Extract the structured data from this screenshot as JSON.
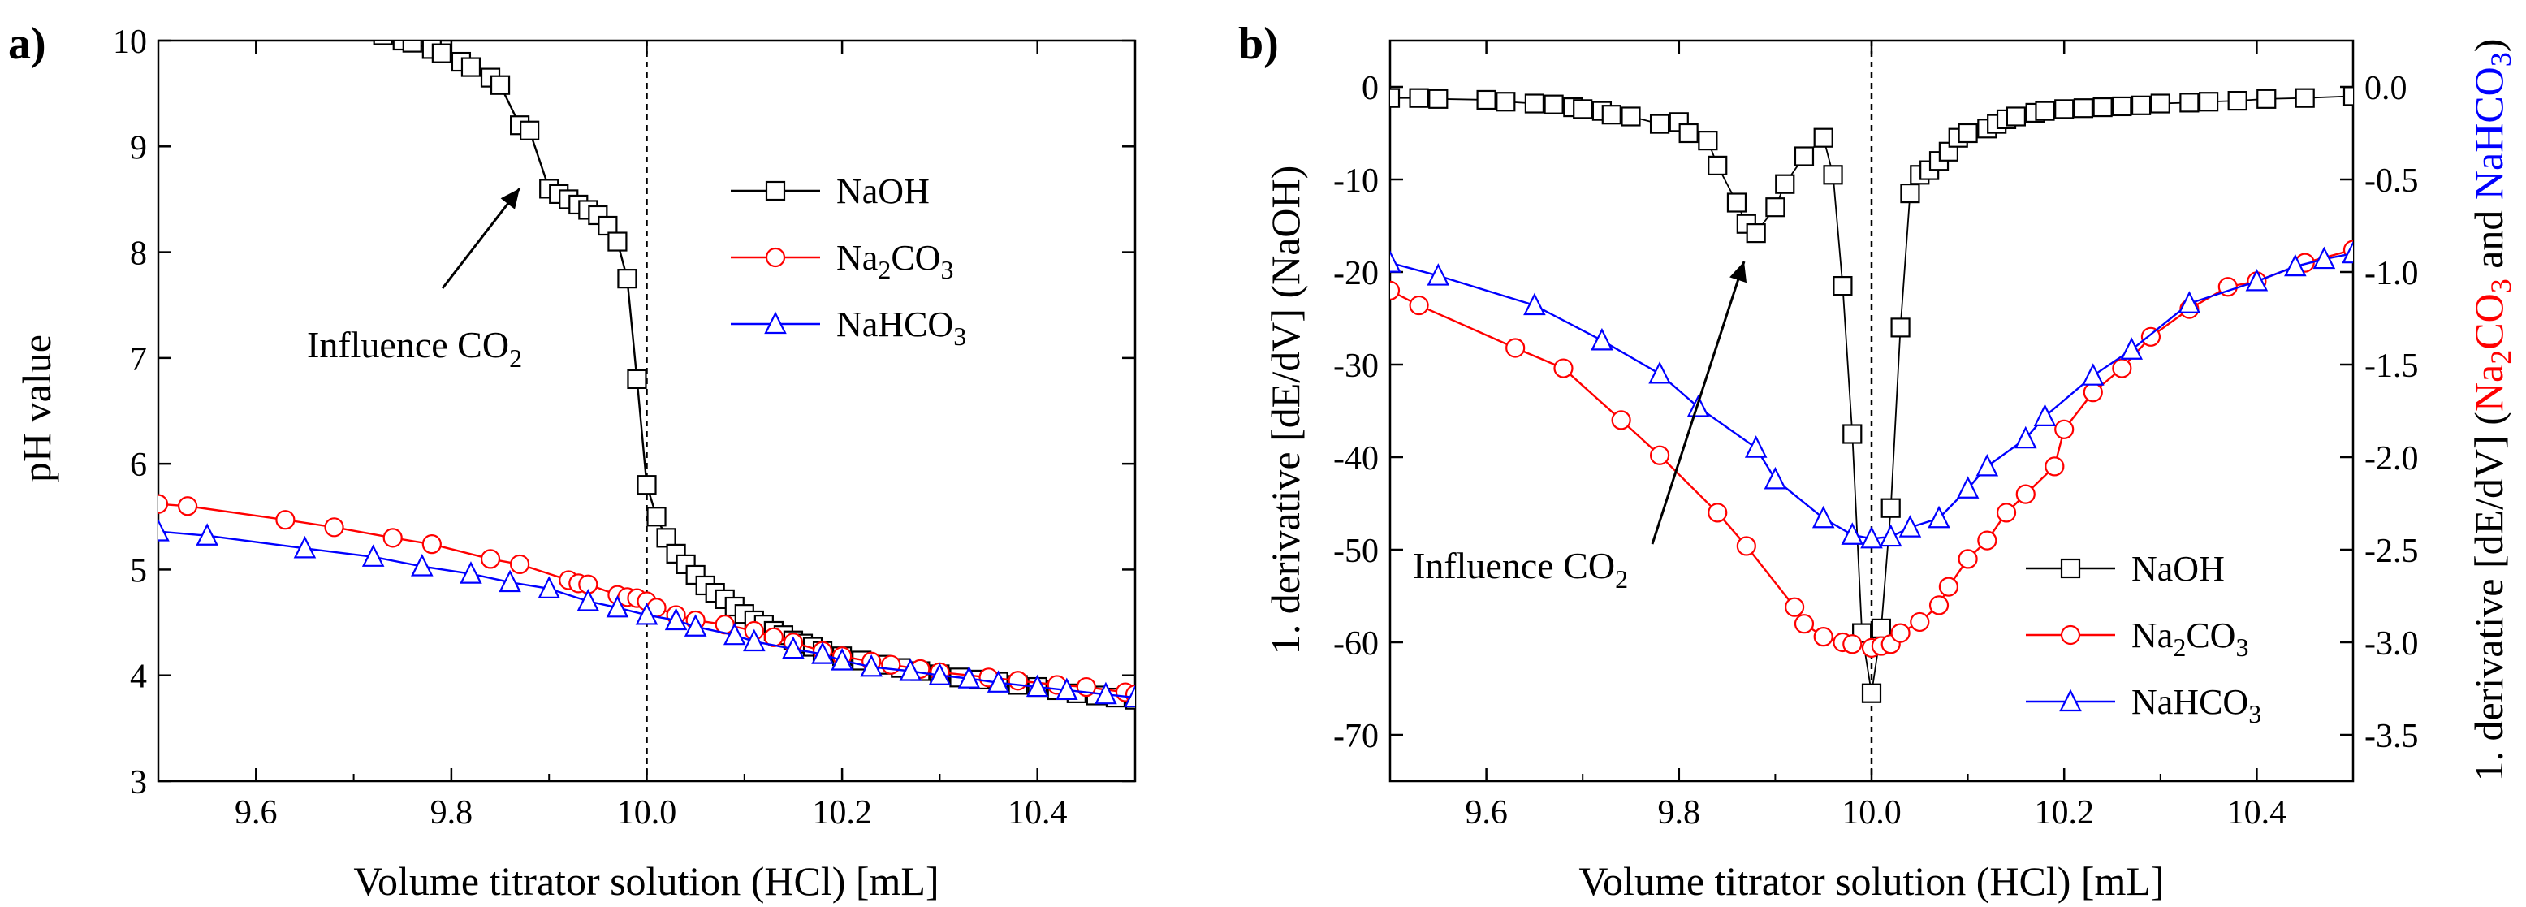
{
  "chart_data": [
    {
      "panel_label": "a)",
      "type": "line",
      "xlabel": "Volume titrator solution (HCl) [mL]",
      "ylabel": "pH value",
      "xlim": [
        9.5,
        10.5
      ],
      "ylim": [
        3,
        10
      ],
      "x_ticks": [
        "9.6",
        "9.8",
        "10.0",
        "10.2",
        "10.4"
      ],
      "y_ticks": [
        "3",
        "4",
        "5",
        "6",
        "7",
        "8",
        "9",
        "10"
      ],
      "vline_x": 10.0,
      "annotation": {
        "text": "Influence CO",
        "subscript": "2"
      },
      "legend": [
        {
          "name": "NaOH",
          "sub": "",
          "color": "#000000",
          "marker": "square"
        },
        {
          "name": "Na",
          "sub": "2",
          "suffix": "CO",
          "sub2": "3",
          "color": "#ff0000",
          "marker": "circle"
        },
        {
          "name": "NaHCO",
          "sub": "3",
          "color": "#0000ff",
          "marker": "triangle"
        }
      ],
      "series": [
        {
          "name": "NaOH",
          "color": "#000000",
          "marker": "square",
          "x": [
            9.73,
            9.75,
            9.76,
            9.78,
            9.79,
            9.81,
            9.82,
            9.84,
            9.85,
            9.87,
            9.88,
            9.9,
            9.91,
            9.92,
            9.93,
            9.94,
            9.95,
            9.96,
            9.97,
            9.98,
            9.99,
            10.0,
            10.01,
            10.02,
            10.03,
            10.04,
            10.05,
            10.06,
            10.07,
            10.08,
            10.09,
            10.1,
            10.11,
            10.12,
            10.13,
            10.14,
            10.15,
            10.16,
            10.17,
            10.18,
            10.2,
            10.22,
            10.24,
            10.26,
            10.28,
            10.3,
            10.32,
            10.34,
            10.36,
            10.38,
            10.4,
            10.42,
            10.44,
            10.46,
            10.48,
            10.5
          ],
          "y": [
            10.05,
            10.0,
            9.98,
            9.92,
            9.88,
            9.8,
            9.75,
            9.65,
            9.58,
            9.2,
            9.15,
            8.6,
            8.55,
            8.5,
            8.45,
            8.4,
            8.35,
            8.25,
            8.1,
            7.75,
            6.8,
            5.8,
            5.5,
            5.3,
            5.15,
            5.05,
            4.95,
            4.85,
            4.78,
            4.72,
            4.65,
            4.58,
            4.52,
            4.48,
            4.42,
            4.38,
            4.33,
            4.3,
            4.27,
            4.23,
            4.18,
            4.14,
            4.1,
            4.07,
            4.04,
            4.01,
            3.98,
            3.96,
            3.94,
            3.91,
            3.89,
            3.86,
            3.83,
            3.81,
            3.79,
            3.77
          ]
        },
        {
          "name": "Na2CO3",
          "color": "#ff0000",
          "marker": "circle",
          "x": [
            9.5,
            9.53,
            9.63,
            9.68,
            9.74,
            9.78,
            9.84,
            9.87,
            9.92,
            9.93,
            9.94,
            9.97,
            9.98,
            9.99,
            10.0,
            10.01,
            10.03,
            10.05,
            10.08,
            10.11,
            10.13,
            10.15,
            10.18,
            10.2,
            10.23,
            10.25,
            10.28,
            10.3,
            10.35,
            10.38,
            10.42,
            10.45,
            10.49,
            10.5
          ],
          "y": [
            5.62,
            5.6,
            5.47,
            5.4,
            5.3,
            5.24,
            5.1,
            5.05,
            4.9,
            4.87,
            4.86,
            4.76,
            4.74,
            4.73,
            4.7,
            4.64,
            4.57,
            4.52,
            4.48,
            4.42,
            4.36,
            4.31,
            4.23,
            4.18,
            4.13,
            4.1,
            4.06,
            4.03,
            3.98,
            3.95,
            3.91,
            3.89,
            3.84,
            3.82
          ]
        },
        {
          "name": "NaHCO3",
          "color": "#0000ff",
          "marker": "triangle",
          "x": [
            9.5,
            9.55,
            9.65,
            9.72,
            9.77,
            9.82,
            9.86,
            9.9,
            9.94,
            9.97,
            10.0,
            10.03,
            10.05,
            10.09,
            10.11,
            10.15,
            10.18,
            10.2,
            10.23,
            10.27,
            10.3,
            10.33,
            10.36,
            10.4,
            10.43,
            10.47,
            10.5
          ],
          "y": [
            5.36,
            5.32,
            5.2,
            5.12,
            5.03,
            4.96,
            4.88,
            4.82,
            4.7,
            4.64,
            4.57,
            4.52,
            4.46,
            4.38,
            4.32,
            4.25,
            4.2,
            4.14,
            4.08,
            4.04,
            4.0,
            3.97,
            3.93,
            3.89,
            3.86,
            3.82,
            3.79
          ]
        }
      ]
    },
    {
      "panel_label": "b)",
      "type": "line",
      "xlabel": "Volume titrator solution (HCl) [mL]",
      "ylabel": "1. derivative [dE/dV] (NaOH)",
      "ylabel_right_parts": [
        {
          "text": "1. derivative [dE/dV] (",
          "color": "#000000"
        },
        {
          "text": "Na2CO3",
          "color": "#ff0000"
        },
        {
          "text": " and ",
          "color": "#000000"
        },
        {
          "text": "NaHCO3",
          "color": "#0000ff"
        },
        {
          "text": ")",
          "color": "#000000"
        }
      ],
      "xlim": [
        9.5,
        10.5
      ],
      "ylim": [
        -75,
        5
      ],
      "ylim_right": [
        -3.75,
        0.25
      ],
      "x_ticks": [
        "9.6",
        "9.8",
        "10.0",
        "10.2",
        "10.4"
      ],
      "y_ticks": [
        "0",
        "-10",
        "-20",
        "-30",
        "-40",
        "-50",
        "-60",
        "-70"
      ],
      "y_ticks_right": [
        "0.0",
        "-0.5",
        "-1.0",
        "-1.5",
        "-2.0",
        "-2.5",
        "-3.0",
        "-3.5"
      ],
      "vline_x": 10.0,
      "annotation": {
        "text": "Influence CO",
        "subscript": "2"
      },
      "legend": [
        {
          "name": "NaOH",
          "sub": "",
          "color": "#000000",
          "marker": "square"
        },
        {
          "name": "Na",
          "sub": "2",
          "suffix": "CO",
          "sub2": "3",
          "color": "#ff0000",
          "marker": "circle"
        },
        {
          "name": "NaHCO",
          "sub": "3",
          "color": "#0000ff",
          "marker": "triangle"
        }
      ],
      "series": [
        {
          "name": "NaOH",
          "color": "#000000",
          "marker": "square",
          "axis": "left",
          "x": [
            9.5,
            9.53,
            9.55,
            9.6,
            9.62,
            9.65,
            9.67,
            9.69,
            9.7,
            9.72,
            9.73,
            9.75,
            9.78,
            9.8,
            9.81,
            9.83,
            9.84,
            9.86,
            9.87,
            9.88,
            9.9,
            9.91,
            9.93,
            9.95,
            9.96,
            9.97,
            9.98,
            9.99,
            10.0,
            10.01,
            10.02,
            10.03,
            10.04,
            10.05,
            10.06,
            10.07,
            10.08,
            10.09,
            10.1,
            10.12,
            10.13,
            10.14,
            10.15,
            10.17,
            10.18,
            10.2,
            10.22,
            10.24,
            10.26,
            10.28,
            10.3,
            10.33,
            10.35,
            10.38,
            10.41,
            10.45,
            10.5
          ],
          "y": [
            -1.2,
            -1.2,
            -1.3,
            -1.4,
            -1.6,
            -1.8,
            -1.9,
            -2.2,
            -2.4,
            -2.6,
            -3.0,
            -3.2,
            -4.0,
            -3.8,
            -5.0,
            -5.8,
            -8.5,
            -12.5,
            -14.8,
            -15.8,
            -13.0,
            -10.5,
            -7.5,
            -5.5,
            -9.5,
            -21.5,
            -37.5,
            -59.0,
            -65.5,
            -58.5,
            -45.5,
            -26.0,
            -11.5,
            -9.5,
            -9.0,
            -8.0,
            -7.0,
            -5.5,
            -5.0,
            -4.5,
            -4.0,
            -3.5,
            -3.2,
            -2.8,
            -2.6,
            -2.4,
            -2.3,
            -2.2,
            -2.1,
            -2.0,
            -1.8,
            -1.7,
            -1.6,
            -1.5,
            -1.3,
            -1.2,
            -1.0
          ]
        },
        {
          "name": "Na2CO3",
          "color": "#ff0000",
          "marker": "circle",
          "axis": "right",
          "x": [
            9.5,
            9.53,
            9.63,
            9.68,
            9.74,
            9.78,
            9.84,
            9.87,
            9.92,
            9.93,
            9.95,
            9.97,
            9.98,
            10.0,
            10.01,
            10.02,
            10.03,
            10.05,
            10.07,
            10.08,
            10.1,
            10.12,
            10.14,
            10.16,
            10.19,
            10.2,
            10.23,
            10.26,
            10.29,
            10.33,
            10.37,
            10.4,
            10.45,
            10.5
          ],
          "y": [
            -1.1,
            -1.18,
            -1.41,
            -1.52,
            -1.8,
            -1.99,
            -2.3,
            -2.48,
            -2.81,
            -2.9,
            -2.97,
            -3.0,
            -3.01,
            -3.03,
            -3.02,
            -3.01,
            -2.95,
            -2.89,
            -2.8,
            -2.7,
            -2.55,
            -2.45,
            -2.3,
            -2.2,
            -2.05,
            -1.85,
            -1.65,
            -1.52,
            -1.35,
            -1.2,
            -1.08,
            -1.05,
            -0.95,
            -0.88
          ]
        },
        {
          "name": "NaHCO3",
          "color": "#0000ff",
          "marker": "triangle",
          "axis": "right",
          "x": [
            9.5,
            9.55,
            9.65,
            9.72,
            9.78,
            9.82,
            9.88,
            9.9,
            9.95,
            9.98,
            10.0,
            10.02,
            10.04,
            10.07,
            10.1,
            10.12,
            10.16,
            10.18,
            10.23,
            10.27,
            10.33,
            10.4,
            10.44,
            10.47,
            10.5
          ],
          "y": [
            -0.95,
            -1.02,
            -1.18,
            -1.37,
            -1.55,
            -1.73,
            -1.95,
            -2.12,
            -2.33,
            -2.42,
            -2.44,
            -2.43,
            -2.38,
            -2.33,
            -2.17,
            -2.05,
            -1.9,
            -1.78,
            -1.56,
            -1.42,
            -1.17,
            -1.05,
            -0.97,
            -0.93,
            -0.9
          ]
        }
      ]
    }
  ]
}
